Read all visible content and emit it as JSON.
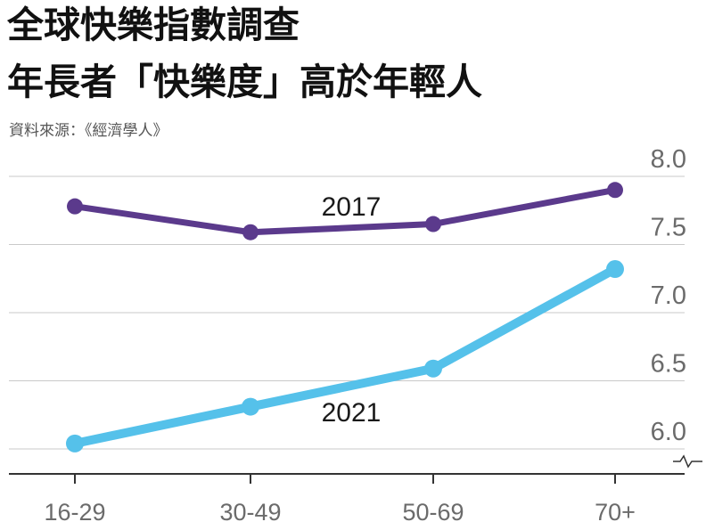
{
  "title_lines": [
    "全球快樂指數調查",
    "年長者「快樂度」高於年輕人"
  ],
  "source": "資料來源：《經濟學人》",
  "chart_data": {
    "type": "line",
    "categories": [
      "16-29",
      "30-49",
      "50-69",
      "70+"
    ],
    "series": [
      {
        "name": "2017",
        "values": [
          7.78,
          7.59,
          7.65,
          7.9
        ],
        "color": "#5b3a8c"
      },
      {
        "name": "2021",
        "values": [
          6.04,
          6.31,
          6.59,
          7.32
        ],
        "color": "#55c1ea"
      }
    ],
    "yticks": [
      "6.0",
      "6.5",
      "7.0",
      "7.5",
      "8.0"
    ],
    "ylim": [
      5.8,
      8.0
    ],
    "axis_break": true,
    "grid": true
  }
}
